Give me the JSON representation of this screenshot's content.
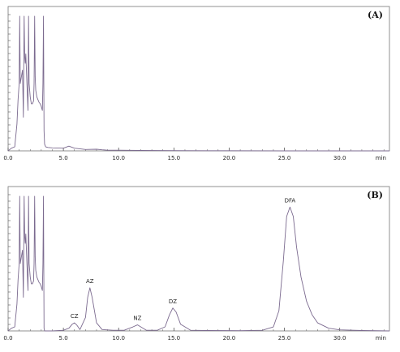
{
  "colors": {
    "trace": "#7b6a8f",
    "axis": "#555555",
    "frame": "#777777",
    "text": "#222222"
  },
  "chart_data": [
    {
      "type": "line",
      "panel_label": "(A)",
      "x_unit": "min",
      "xlim": [
        0,
        34.5
      ],
      "x_ticks": [
        0.0,
        5.0,
        10.0,
        15.0,
        20.0,
        25.0,
        30.0
      ],
      "x_tick_labels": [
        "0.0",
        "5.0",
        "10.0",
        "15.0",
        "20.0",
        "25.0",
        "30.0"
      ],
      "grid": false,
      "series": [
        {
          "x": [
            0.0,
            0.3,
            0.6,
            0.8,
            0.9,
            1.0,
            1.05,
            1.1,
            1.2,
            1.3,
            1.38,
            1.45,
            1.5,
            1.55,
            1.6,
            1.7,
            1.8,
            1.85,
            1.9,
            1.95,
            2.0,
            2.1,
            2.2,
            2.3,
            2.35,
            2.4,
            2.45,
            2.5,
            2.6,
            2.7,
            2.8,
            2.9,
            3.0,
            3.1,
            3.15,
            3.2,
            3.25,
            3.3,
            3.4,
            3.6,
            4.0,
            5.0,
            5.5,
            6.0,
            7.0,
            8.0,
            8.5,
            9.0,
            10.0,
            12.0,
            15.0,
            20.0,
            25.0,
            30.0,
            34.5
          ],
          "y": [
            0.0,
            0.02,
            0.03,
            0.2,
            0.38,
            0.5,
            1.0,
            0.5,
            0.55,
            0.6,
            0.25,
            1.0,
            0.7,
            0.65,
            0.72,
            0.5,
            0.3,
            1.0,
            0.5,
            0.45,
            0.4,
            0.35,
            0.35,
            0.37,
            0.5,
            1.0,
            0.55,
            0.45,
            0.4,
            0.38,
            0.36,
            0.35,
            0.33,
            0.3,
            0.5,
            1.0,
            0.15,
            0.05,
            0.03,
            0.025,
            0.022,
            0.02,
            0.035,
            0.02,
            0.01,
            0.012,
            0.008,
            0.005,
            0.005,
            0.003,
            0.002,
            0.001,
            0.0,
            0.0,
            0.0
          ]
        }
      ],
      "peaks": []
    },
    {
      "type": "line",
      "panel_label": "(B)",
      "x_unit": "min",
      "xlim": [
        0,
        34.5
      ],
      "x_ticks": [
        0.0,
        5.0,
        10.0,
        15.0,
        20.0,
        25.0,
        30.0
      ],
      "x_tick_labels": [
        "0.0",
        "5.0",
        "10.0",
        "15.0",
        "20.0",
        "25.0",
        "30.0"
      ],
      "grid": false,
      "series": [
        {
          "x": [
            0.0,
            0.3,
            0.6,
            0.8,
            0.9,
            1.0,
            1.05,
            1.1,
            1.2,
            1.3,
            1.38,
            1.45,
            1.5,
            1.55,
            1.6,
            1.7,
            1.8,
            1.85,
            1.9,
            1.95,
            2.0,
            2.1,
            2.2,
            2.3,
            2.35,
            2.4,
            2.45,
            2.5,
            2.6,
            2.7,
            2.8,
            2.9,
            3.0,
            3.1,
            3.15,
            3.2,
            3.25,
            3.3,
            3.5,
            4.0,
            5.0,
            5.5,
            5.8,
            6.0,
            6.2,
            6.5,
            7.0,
            7.2,
            7.4,
            7.6,
            8.0,
            8.5,
            9.5,
            10.5,
            11.3,
            11.7,
            12.0,
            12.5,
            13.5,
            14.2,
            14.6,
            14.9,
            15.2,
            15.6,
            16.5,
            18.0,
            21.0,
            23.0,
            24.0,
            24.5,
            24.9,
            25.2,
            25.5,
            25.8,
            26.1,
            26.5,
            27.0,
            27.5,
            28.0,
            29.0,
            30.0,
            32.0,
            34.5
          ],
          "y": [
            0.0,
            0.02,
            0.03,
            0.2,
            0.38,
            0.5,
            1.0,
            0.5,
            0.55,
            0.6,
            0.25,
            1.0,
            0.7,
            0.65,
            0.72,
            0.5,
            0.3,
            1.0,
            0.5,
            0.45,
            0.4,
            0.35,
            0.35,
            0.37,
            0.5,
            1.0,
            0.55,
            0.45,
            0.4,
            0.38,
            0.36,
            0.35,
            0.33,
            0.3,
            0.5,
            1.0,
            0.02,
            0.0,
            0.0,
            0.0,
            0.005,
            0.02,
            0.05,
            0.06,
            0.045,
            0.01,
            0.1,
            0.25,
            0.32,
            0.25,
            0.06,
            0.01,
            0.005,
            0.005,
            0.03,
            0.045,
            0.03,
            0.005,
            0.005,
            0.03,
            0.12,
            0.17,
            0.14,
            0.05,
            0.005,
            0.003,
            0.002,
            0.005,
            0.03,
            0.15,
            0.52,
            0.85,
            0.92,
            0.85,
            0.62,
            0.4,
            0.22,
            0.12,
            0.06,
            0.02,
            0.008,
            0.003,
            0.0
          ]
        }
      ],
      "peaks": [
        {
          "label": "CZ",
          "x": 6.0,
          "y": 0.06
        },
        {
          "label": "AZ",
          "x": 7.4,
          "y": 0.32
        },
        {
          "label": "NZ",
          "x": 11.7,
          "y": 0.045
        },
        {
          "label": "DZ",
          "x": 14.9,
          "y": 0.17
        },
        {
          "label": "DFA",
          "x": 25.5,
          "y": 0.92
        }
      ]
    }
  ]
}
